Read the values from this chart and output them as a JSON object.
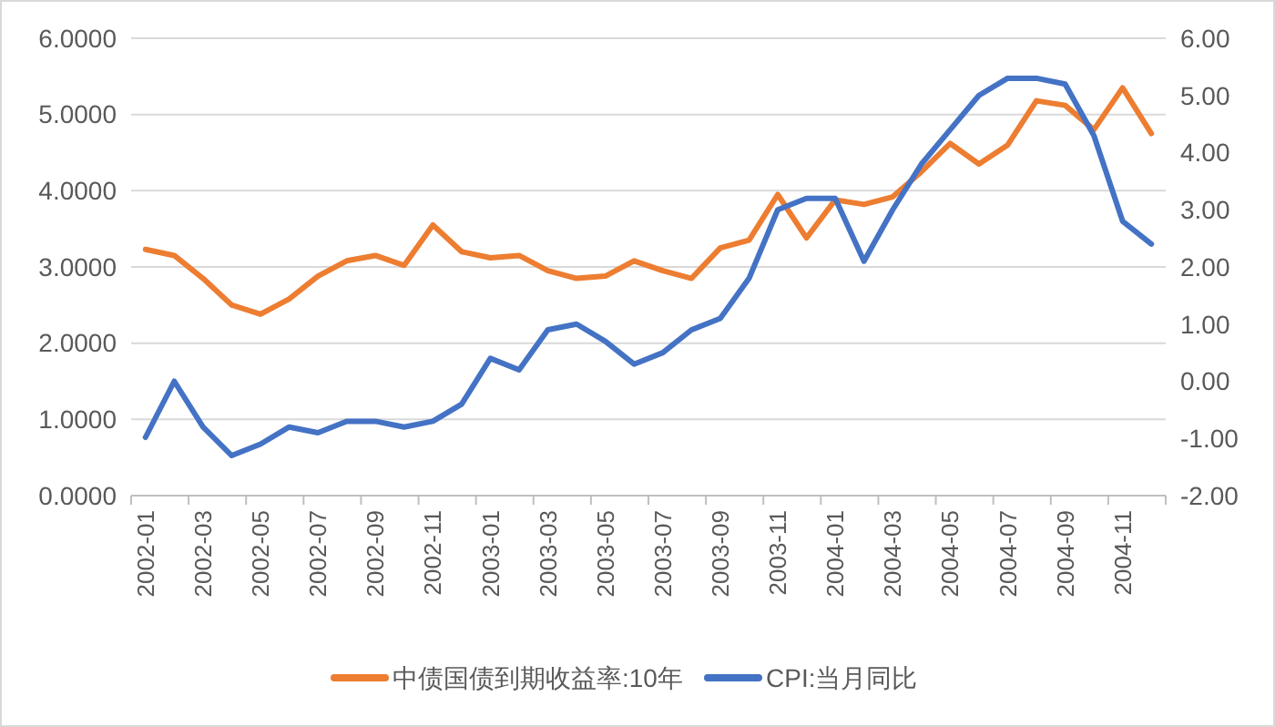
{
  "chart_data": {
    "type": "line",
    "categories": [
      "2002-01",
      null,
      "2002-03",
      null,
      "2002-05",
      null,
      "2002-07",
      null,
      "2002-09",
      null,
      "2002-11",
      null,
      "2003-01",
      null,
      "2003-03",
      null,
      "2003-05",
      null,
      "2003-07",
      null,
      "2003-09",
      null,
      "2003-11",
      null,
      "2004-01",
      null,
      "2004-03",
      null,
      "2004-05",
      null,
      "2004-07",
      null,
      "2004-09",
      null,
      "2004-11",
      null
    ],
    "series": [
      {
        "name": "中债国债到期收益率:10年",
        "color": "#ed7d31",
        "values": [
          3.23,
          3.15,
          2.85,
          2.5,
          2.38,
          2.58,
          2.88,
          3.08,
          3.15,
          3.02,
          3.55,
          3.2,
          3.12,
          3.15,
          2.95,
          2.85,
          2.88,
          3.08,
          2.95,
          2.85,
          3.25,
          3.35,
          3.95,
          3.38,
          3.88,
          3.82,
          3.92,
          4.25,
          4.62,
          4.35,
          4.6,
          5.18,
          5.12,
          4.8,
          5.35,
          4.75
        ]
      },
      {
        "name": "CPI:当月同比",
        "color": "#4472c4",
        "axis": "y2",
        "values": [
          -0.98,
          0.0,
          -0.8,
          -1.3,
          -1.1,
          -0.8,
          -0.9,
          -0.7,
          -0.7,
          -0.8,
          -0.7,
          -0.4,
          0.4,
          0.2,
          0.9,
          1.0,
          0.7,
          0.3,
          0.5,
          0.9,
          1.1,
          1.8,
          3.0,
          3.2,
          3.2,
          2.1,
          3.0,
          3.8,
          4.4,
          5.0,
          5.3,
          5.3,
          5.2,
          4.3,
          2.8,
          2.4
        ]
      }
    ],
    "ylim": [
      0,
      6
    ],
    "yticks": [
      {
        "value": 0,
        "label": "0.0000"
      },
      {
        "value": 1,
        "label": "1.0000"
      },
      {
        "value": 2,
        "label": "2.0000"
      },
      {
        "value": 3,
        "label": "3.0000"
      },
      {
        "value": 4,
        "label": "4.0000"
      },
      {
        "value": 5,
        "label": "5.0000"
      },
      {
        "value": 6,
        "label": "6.0000"
      }
    ],
    "y2lim": [
      -2,
      6
    ],
    "y2ticks": [
      {
        "value": -2,
        "label": "-2.00"
      },
      {
        "value": -1,
        "label": "-1.00"
      },
      {
        "value": 0,
        "label": "0.00"
      },
      {
        "value": 1,
        "label": "1.00"
      },
      {
        "value": 2,
        "label": "2.00"
      },
      {
        "value": 3,
        "label": "3.00"
      },
      {
        "value": 4,
        "label": "4.00"
      },
      {
        "value": 5,
        "label": "5.00"
      },
      {
        "value": 6,
        "label": "6.00"
      }
    ],
    "grid": "y",
    "legend": "bottom",
    "marker": "none",
    "line_style": "solid"
  }
}
